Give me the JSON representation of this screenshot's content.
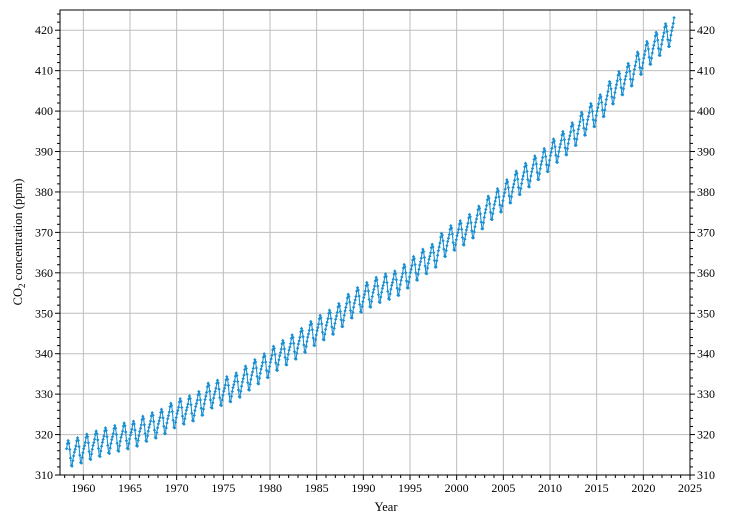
{
  "chart_data": {
    "type": "line",
    "xlabel": "Year",
    "ylabel_main": "CO",
    "ylabel_sub": "2",
    "ylabel_rest": " concentration (ppm)",
    "xlim": [
      1957.5,
      2025
    ],
    "ylim": [
      310,
      425
    ],
    "xticks": [
      1960,
      1965,
      1970,
      1975,
      1980,
      1985,
      1990,
      1995,
      2000,
      2005,
      2010,
      2015,
      2020,
      2025
    ],
    "yticks": [
      310,
      320,
      330,
      340,
      350,
      360,
      370,
      380,
      390,
      400,
      410,
      420
    ],
    "grid": true,
    "secondary_y_axis": "right",
    "line_color": "#1a8fd1",
    "marker": "small diamond",
    "series": [
      {
        "sampling": "monthly, mid-month, 1958.25 to 2023.25",
        "annual_means": {
          "1958": 315.3,
          "1959": 315.97,
          "1960": 316.91,
          "1961": 317.64,
          "1962": 318.45,
          "1963": 318.99,
          "1964": 319.62,
          "1965": 320.04,
          "1966": 321.37,
          "1967": 322.18,
          "1968": 323.05,
          "1969": 324.62,
          "1970": 325.68,
          "1971": 326.32,
          "1972": 327.46,
          "1973": 329.68,
          "1974": 330.19,
          "1975": 331.13,
          "1976": 332.03,
          "1977": 333.84,
          "1978": 335.41,
          "1979": 336.84,
          "1980": 338.76,
          "1981": 340.12,
          "1982": 341.48,
          "1983": 343.15,
          "1984": 344.87,
          "1985": 346.35,
          "1986": 347.61,
          "1987": 349.31,
          "1988": 351.69,
          "1989": 353.2,
          "1990": 354.45,
          "1991": 355.7,
          "1992": 356.54,
          "1993": 357.21,
          "1994": 358.96,
          "1995": 360.97,
          "1996": 362.74,
          "1997": 363.88,
          "1998": 366.84,
          "1999": 368.54,
          "2000": 369.71,
          "2001": 371.32,
          "2002": 373.45,
          "2003": 375.98,
          "2004": 377.7,
          "2005": 379.98,
          "2006": 382.09,
          "2007": 384.02,
          "2008": 385.83,
          "2009": 387.64,
          "2010": 390.1,
          "2011": 391.85,
          "2012": 394.06,
          "2013": 396.74,
          "2014": 398.81,
          "2015": 401.01,
          "2016": 404.41,
          "2017": 406.76,
          "2018": 408.72,
          "2019": 411.66,
          "2020": 414.24,
          "2021": 416.45,
          "2022": 418.56,
          "2023": 421.0
        },
        "seasonal_cycle_ppm_jan_to_dec": [
          0.0,
          0.65,
          1.4,
          2.6,
          3.3,
          2.6,
          1.0,
          -1.2,
          -3.1,
          -3.3,
          -2.0,
          -0.9
        ]
      }
    ]
  }
}
